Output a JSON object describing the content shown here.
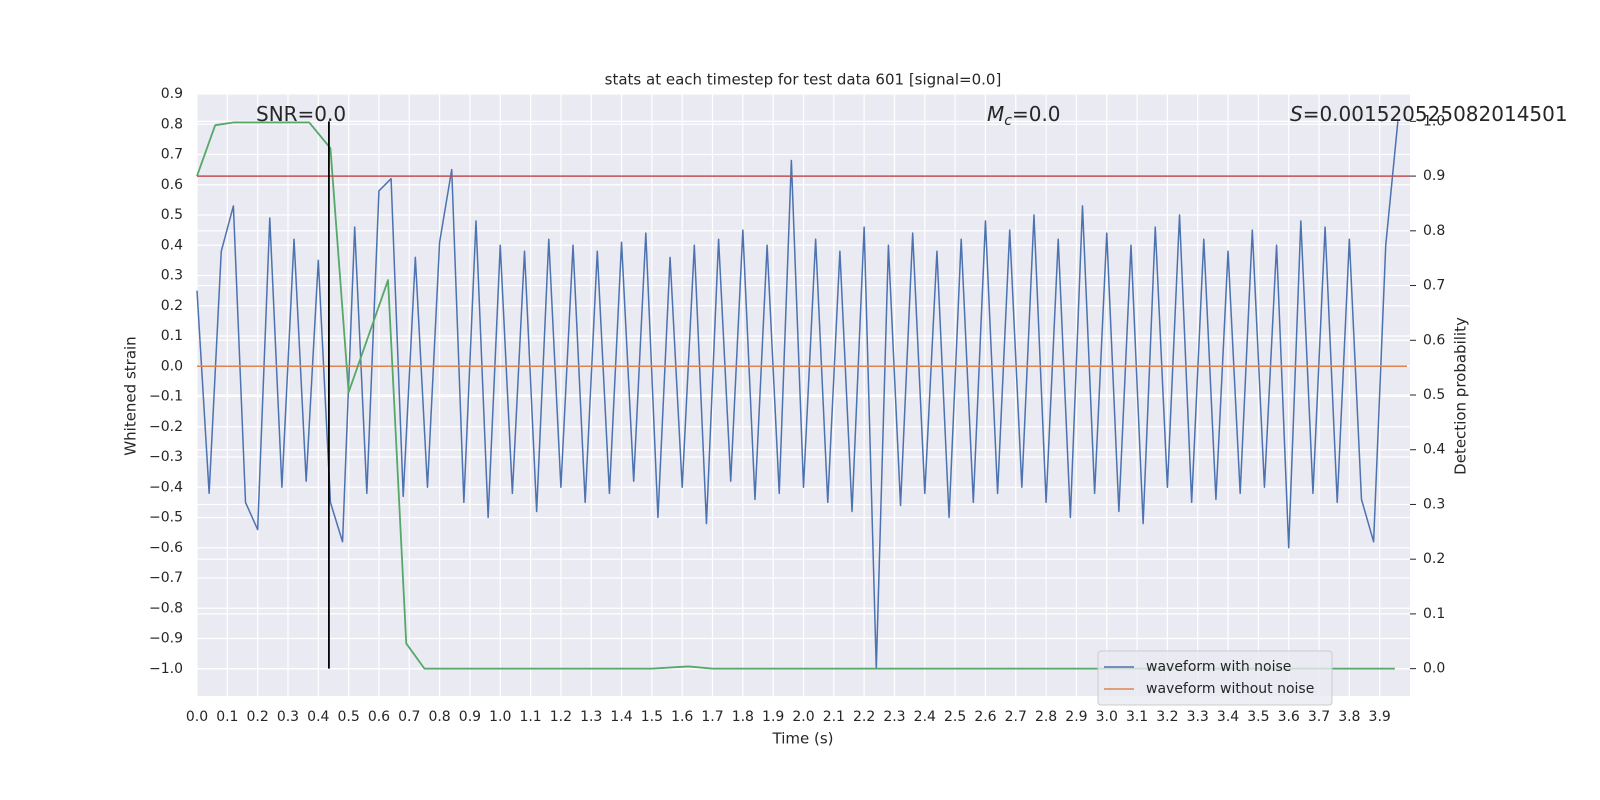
{
  "chart_data": {
    "type": "line",
    "title": "stats at each timestep for test data 601 [signal=0.0]",
    "xlabel": "Time (s)",
    "ylabel": "Whitened strain",
    "y2label": "Detection probability",
    "xlim": [
      0,
      4.0
    ],
    "ylim": [
      -1.09,
      0.9
    ],
    "y2lim": [
      -0.05,
      1.05
    ],
    "grid": true,
    "legend": "lower right",
    "xticks": [
      {
        "value": 0,
        "label": "0.0"
      },
      0.1,
      0.2,
      0.3,
      0.4,
      0.5,
      0.6,
      0.7,
      0.8,
      0.9,
      {
        "value": 1,
        "label": "1.0"
      },
      1.1,
      1.2,
      1.3,
      1.4,
      1.5,
      1.6,
      1.7,
      1.8,
      1.9,
      {
        "value": 2,
        "label": "2.0"
      },
      2.1,
      2.2,
      2.3,
      2.4,
      2.5,
      2.6,
      2.7,
      2.8,
      2.9,
      {
        "value": 3,
        "label": "3.0"
      },
      3.1,
      3.2,
      3.3,
      3.4,
      3.5,
      3.6,
      3.7,
      3.8,
      3.9
    ],
    "yticks": [
      0.9,
      0.8,
      0.7,
      0.6,
      0.5,
      0.4,
      0.3,
      0.2,
      0.1,
      {
        "value": 0,
        "label": "0.0"
      },
      {
        "value": -0.1,
        "label": "−0.1"
      },
      {
        "value": -0.2,
        "label": "−0.2"
      },
      {
        "value": -0.3,
        "label": "−0.3"
      },
      {
        "value": -0.4,
        "label": "−0.4"
      },
      {
        "value": -0.5,
        "label": "−0.5"
      },
      {
        "value": -0.6,
        "label": "−0.6"
      },
      {
        "value": -0.7,
        "label": "−0.7"
      },
      {
        "value": -0.8,
        "label": "−0.8"
      },
      {
        "value": -0.9,
        "label": "−0.9"
      },
      {
        "value": -1,
        "label": "−1.0"
      }
    ],
    "y2ticks": [
      {
        "value": 0,
        "label": "0.0"
      },
      0.1,
      0.2,
      0.3,
      0.4,
      0.5,
      0.6,
      0.7,
      0.8,
      0.9,
      {
        "value": 1,
        "label": "1.0"
      }
    ],
    "series": [
      {
        "name": "waveform with noise",
        "color": "#4c72b0",
        "x": [
          0,
          0.04,
          0.08,
          0.12,
          0.16,
          0.2,
          0.24,
          0.28,
          0.32,
          0.36,
          0.4,
          0.44,
          0.48,
          0.52,
          0.56,
          0.6,
          0.64,
          0.68,
          0.72,
          0.76,
          0.8,
          0.84,
          0.88,
          0.92,
          0.96,
          1,
          1.04,
          1.08,
          1.12,
          1.16,
          1.2,
          1.24,
          1.28,
          1.32,
          1.36,
          1.4,
          1.44,
          1.48,
          1.52,
          1.56,
          1.6,
          1.64,
          1.68,
          1.72,
          1.76,
          1.8,
          1.84,
          1.88,
          1.92,
          1.96,
          2,
          2.04,
          2.08,
          2.12,
          2.16,
          2.2,
          2.24,
          2.28,
          2.32,
          2.36,
          2.4,
          2.44,
          2.48,
          2.52,
          2.56,
          2.6,
          2.64,
          2.68,
          2.72,
          2.76,
          2.8,
          2.84,
          2.88,
          2.92,
          2.96,
          3,
          3.04,
          3.08,
          3.12,
          3.16,
          3.2,
          3.24,
          3.28,
          3.32,
          3.36,
          3.4,
          3.44,
          3.48,
          3.52,
          3.56,
          3.6,
          3.64,
          3.68,
          3.72,
          3.76,
          3.8,
          3.84,
          3.88,
          3.92,
          3.96
        ],
        "values": [
          0.25,
          -0.42,
          0.38,
          0.53,
          -0.45,
          -0.54,
          0.49,
          -0.4,
          0.42,
          -0.38,
          0.35,
          -0.45,
          -0.58,
          0.46,
          -0.42,
          0.58,
          0.62,
          -0.43,
          0.36,
          -0.4,
          0.41,
          0.65,
          -0.45,
          0.48,
          -0.5,
          0.4,
          -0.42,
          0.38,
          -0.48,
          0.42,
          -0.4,
          0.4,
          -0.45,
          0.38,
          -0.42,
          0.41,
          -0.38,
          0.44,
          -0.5,
          0.36,
          -0.4,
          0.4,
          -0.52,
          0.42,
          -0.38,
          0.45,
          -0.44,
          0.4,
          -0.42,
          0.68,
          -0.4,
          0.42,
          -0.45,
          0.38,
          -0.48,
          0.46,
          -1.0,
          0.4,
          -0.46,
          0.44,
          -0.42,
          0.38,
          -0.5,
          0.42,
          -0.45,
          0.48,
          -0.42,
          0.45,
          -0.4,
          0.5,
          -0.45,
          0.42,
          -0.5,
          0.53,
          -0.42,
          0.44,
          -0.48,
          0.4,
          -0.52,
          0.46,
          -0.4,
          0.5,
          -0.45,
          0.42,
          -0.44,
          0.38,
          -0.42,
          0.45,
          -0.4,
          0.4,
          -0.6,
          0.48,
          -0.42,
          0.46,
          -0.45,
          0.42,
          -0.44,
          -0.58,
          0.4,
          0.81
        ]
      },
      {
        "name": "waveform without noise",
        "color": "#dd8452",
        "x": [
          0,
          3.99
        ],
        "values": [
          0,
          0
        ]
      },
      {
        "color": "#55a868",
        "axis": "y2",
        "x": [
          0,
          0.06,
          0.12,
          0.37,
          0.44,
          0.5,
          0.63,
          0.69,
          0.75,
          1.5,
          1.62,
          1.7,
          3.95
        ],
        "values": [
          0.9,
          0.993,
          0.998,
          0.998,
          0.951,
          0.505,
          0.71,
          0.046,
          0,
          0,
          0.004,
          0,
          0
        ]
      }
    ],
    "hlines": [
      {
        "value": 0.9,
        "axis": "y2",
        "color": "#c44e52"
      }
    ],
    "vlines": [
      {
        "x": 0.435,
        "ymin": 0,
        "ymax": 1,
        "axis": "y2",
        "color": "#000000"
      }
    ],
    "annotations": [
      {
        "text": "SNR=0.0"
      },
      {
        "symbol": "M",
        "subscript": "c",
        "text": "=0.0"
      },
      {
        "symbol": "S",
        "text": "=0.001520525082014501"
      }
    ]
  }
}
